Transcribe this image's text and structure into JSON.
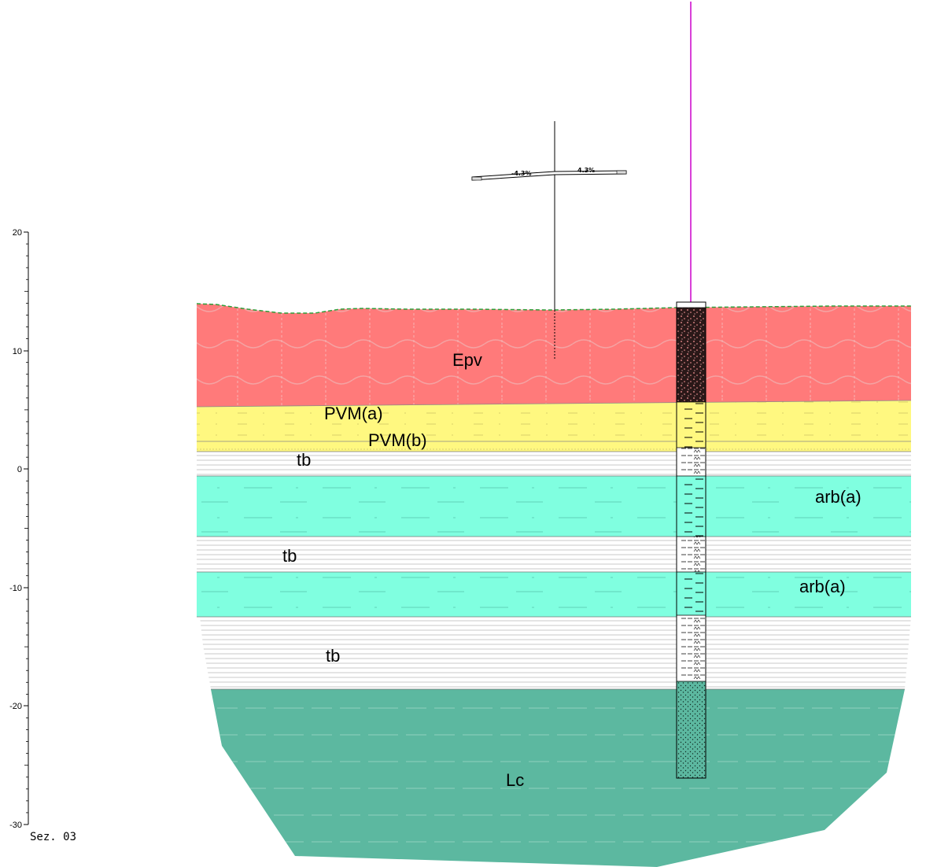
{
  "section_label": "Sez. 03",
  "axis": {
    "ticks": [
      "20",
      "10",
      "0",
      "-10",
      "-20",
      "-30"
    ]
  },
  "road": {
    "grade_left": "-4.3%",
    "grade_right": "4.3%"
  },
  "layers": [
    {
      "code": "Epv"
    },
    {
      "code": "PVM(a)"
    },
    {
      "code": "PVM(b)"
    },
    {
      "code": "tb"
    },
    {
      "code": "arb(a)"
    },
    {
      "code": "tb"
    },
    {
      "code": "arb(a)"
    },
    {
      "code": "tb"
    },
    {
      "code": "Lc"
    }
  ],
  "colors": {
    "epv": "#ff7a7a",
    "pvm": "#fff880",
    "tb": "#ffffff",
    "arb": "#80ffe0",
    "lc": "#5cb8a0",
    "ground_line": "#2e9e3a",
    "borehole_marker": "#cc00cc"
  }
}
